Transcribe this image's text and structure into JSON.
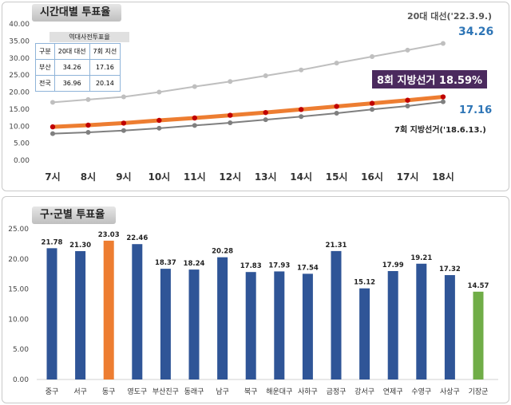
{
  "chart_data": [
    {
      "type": "line",
      "title": "시간대별 투표율",
      "x": [
        "7시",
        "8시",
        "9시",
        "10시",
        "11시",
        "12시",
        "13시",
        "14시",
        "15시",
        "16시",
        "17시",
        "18시"
      ],
      "ylim": [
        0,
        40
      ],
      "yticks": [
        "0.00",
        "5.00",
        "10.00",
        "15.00",
        "20.00",
        "25.00",
        "30.00",
        "35.00",
        "40.00"
      ],
      "grid": false,
      "series": [
        {
          "name": "20대 대선('22.3.9.)",
          "values": [
            17.0,
            17.8,
            18.6,
            20.0,
            21.6,
            23.1,
            24.8,
            26.5,
            28.5,
            30.4,
            32.3,
            34.26
          ],
          "color": "#bfbfbf"
        },
        {
          "name": "8회 지방선거",
          "values": [
            9.8,
            10.3,
            10.9,
            11.7,
            12.4,
            13.2,
            14.0,
            14.9,
            15.8,
            16.7,
            17.6,
            18.59
          ],
          "color": "#ed7d31"
        },
        {
          "name": "7회 지방선거('18.6.13.)",
          "values": [
            7.8,
            8.2,
            8.7,
            9.4,
            10.2,
            11.0,
            11.9,
            12.8,
            13.8,
            14.9,
            15.9,
            17.16
          ],
          "color": "#7f7f7f"
        }
      ],
      "annotations": {
        "top_label": "20대 대선('22.3.9.)",
        "top_value": "34.26",
        "current_label": "8회 지방선거 18.59%",
        "prev_value": "17.16",
        "prev_label": "7회 지방선거('18.6.13.)"
      },
      "table": {
        "caption": "역대사전투표율",
        "header": [
          "구분",
          "20대 대선",
          "7회 지선"
        ],
        "rows": [
          [
            "부산",
            "34.26",
            "17.16"
          ],
          [
            "전국",
            "36.96",
            "20.14"
          ]
        ]
      }
    },
    {
      "type": "bar",
      "title": "구·군별 투표율",
      "categories": [
        "중구",
        "서구",
        "동구",
        "영도구",
        "부산진구",
        "동래구",
        "남구",
        "북구",
        "해운대구",
        "사하구",
        "금정구",
        "강서구",
        "연제구",
        "수영구",
        "사상구",
        "기장군"
      ],
      "values": [
        21.78,
        21.3,
        23.03,
        22.46,
        18.37,
        18.24,
        20.28,
        17.83,
        17.93,
        17.54,
        21.31,
        15.12,
        17.99,
        19.21,
        17.32,
        14.57
      ],
      "value_labels": [
        "21.78",
        "21.30",
        "23.03",
        "22.46",
        "18.37",
        "18.24",
        "20.28",
        "17.83",
        "17.93",
        "17.54",
        "21.31",
        "15.12",
        "17.99",
        "19.21",
        "17.32",
        "14.57"
      ],
      "ylim": [
        0,
        25
      ],
      "yticks": [
        "0.00",
        "5.00",
        "10.00",
        "15.00",
        "20.00",
        "25.00"
      ],
      "colors": {
        "default": "#2f5597",
        "max": "#ed7d31",
        "min": "#70ad47"
      },
      "highlight": {
        "max_index": 2,
        "min_index": 15
      }
    }
  ]
}
